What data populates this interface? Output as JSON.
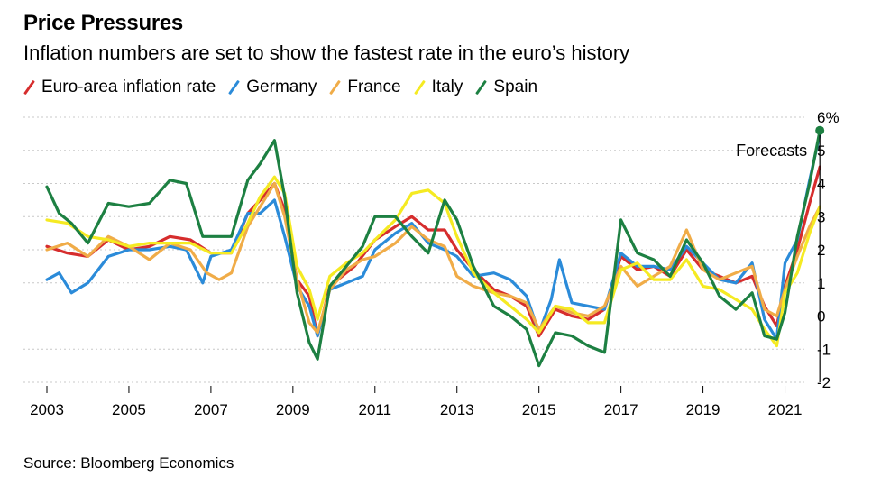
{
  "chart_data": {
    "type": "line",
    "title": "Price Pressures",
    "subtitle": "Inflation numbers are set to show the fastest rate in the euro’s history",
    "source": "Source: Bloomberg Economics",
    "annotation": "Forecasts",
    "xlim": [
      2003,
      2022
    ],
    "ylim": [
      -2,
      6
    ],
    "x_ticks": [
      2003,
      2005,
      2007,
      2009,
      2011,
      2013,
      2015,
      2017,
      2019,
      2021
    ],
    "x_tick_labels": [
      "2003",
      "2005",
      "2007",
      "2009",
      "2011",
      "2013",
      "2015",
      "2017",
      "2019",
      "2021"
    ],
    "y_ticks": [
      -2,
      -1,
      0,
      1,
      2,
      3,
      4,
      5,
      6
    ],
    "y_tick_labels": [
      "-2",
      "-1",
      "0",
      "1",
      "2",
      "3",
      "4",
      "5",
      "6%"
    ],
    "legend_position": "top-left",
    "grid": "dashed-horizontal",
    "series": [
      {
        "name": "Euro-area inflation rate",
        "color": "#d62d2d",
        "x": [
          2003.0,
          2003.5,
          2004.0,
          2004.5,
          2005.0,
          2005.5,
          2006.0,
          2006.5,
          2007.0,
          2007.5,
          2007.9,
          2008.2,
          2008.55,
          2008.8,
          2009.1,
          2009.4,
          2009.6,
          2009.9,
          2010.2,
          2010.5,
          2011.0,
          2011.5,
          2011.9,
          2012.3,
          2012.7,
          2013.0,
          2013.4,
          2013.9,
          2014.3,
          2014.7,
          2015.0,
          2015.4,
          2015.8,
          2016.2,
          2016.6,
          2017.0,
          2017.4,
          2017.8,
          2018.2,
          2018.6,
          2019.0,
          2019.4,
          2019.8,
          2020.2,
          2020.5,
          2020.8,
          2021.0,
          2021.3,
          2021.6,
          2021.85
        ],
        "values": [
          2.1,
          1.9,
          1.8,
          2.3,
          2.0,
          2.1,
          2.4,
          2.3,
          1.9,
          1.9,
          3.1,
          3.5,
          4.0,
          3.2,
          1.1,
          0.6,
          -0.6,
          0.9,
          1.2,
          1.5,
          2.3,
          2.7,
          3.0,
          2.6,
          2.6,
          2.0,
          1.4,
          0.8,
          0.6,
          0.3,
          -0.6,
          0.2,
          0.0,
          -0.1,
          0.2,
          1.8,
          1.4,
          1.5,
          1.2,
          2.0,
          1.4,
          1.2,
          1.0,
          1.2,
          0.3,
          -0.3,
          0.9,
          2.0,
          3.4,
          4.5
        ]
      },
      {
        "name": "Germany",
        "color": "#2b8bd9",
        "x": [
          2003.0,
          2003.3,
          2003.6,
          2004.0,
          2004.5,
          2005.0,
          2005.5,
          2006.0,
          2006.4,
          2006.8,
          2007.0,
          2007.5,
          2007.9,
          2008.2,
          2008.55,
          2008.8,
          2009.1,
          2009.4,
          2009.6,
          2009.9,
          2010.3,
          2010.7,
          2011.0,
          2011.5,
          2011.9,
          2012.3,
          2012.7,
          2013.0,
          2013.4,
          2013.9,
          2014.3,
          2014.7,
          2015.0,
          2015.3,
          2015.5,
          2015.8,
          2016.2,
          2016.6,
          2017.0,
          2017.4,
          2017.8,
          2018.2,
          2018.6,
          2019.0,
          2019.4,
          2019.8,
          2020.2,
          2020.5,
          2020.8,
          2021.0,
          2021.3,
          2021.6,
          2021.85
        ],
        "values": [
          1.1,
          1.3,
          0.7,
          1.0,
          1.8,
          2.0,
          2.0,
          2.1,
          2.0,
          1.0,
          1.8,
          2.0,
          3.1,
          3.1,
          3.5,
          2.4,
          0.9,
          0.3,
          -0.6,
          0.8,
          1.0,
          1.2,
          2.0,
          2.5,
          2.8,
          2.2,
          2.0,
          1.8,
          1.2,
          1.3,
          1.1,
          0.6,
          -0.5,
          0.5,
          1.7,
          0.4,
          0.3,
          0.2,
          1.9,
          1.5,
          1.5,
          1.4,
          2.1,
          1.6,
          1.1,
          1.0,
          1.6,
          -0.1,
          -0.7,
          1.6,
          2.3,
          4.1,
          5.5
        ]
      },
      {
        "name": "France",
        "color": "#f0ac48",
        "x": [
          2003.0,
          2003.5,
          2004.0,
          2004.5,
          2005.0,
          2005.5,
          2006.0,
          2006.5,
          2006.9,
          2007.2,
          2007.5,
          2007.9,
          2008.2,
          2008.55,
          2008.8,
          2009.1,
          2009.4,
          2009.6,
          2009.9,
          2010.3,
          2010.7,
          2011.0,
          2011.5,
          2011.9,
          2012.3,
          2012.7,
          2013.0,
          2013.4,
          2013.9,
          2014.3,
          2014.7,
          2015.0,
          2015.4,
          2015.8,
          2016.2,
          2016.6,
          2017.0,
          2017.4,
          2017.8,
          2018.2,
          2018.6,
          2019.0,
          2019.4,
          2019.8,
          2020.2,
          2020.5,
          2020.8,
          2021.0,
          2021.3,
          2021.6,
          2021.85
        ],
        "values": [
          2.0,
          2.2,
          1.8,
          2.4,
          2.1,
          1.7,
          2.2,
          2.0,
          1.3,
          1.1,
          1.3,
          2.7,
          3.3,
          4.0,
          3.0,
          1.1,
          -0.2,
          -0.5,
          0.8,
          1.4,
          1.7,
          1.8,
          2.2,
          2.7,
          2.3,
          2.1,
          1.2,
          0.9,
          0.7,
          0.6,
          0.4,
          -0.4,
          0.3,
          0.1,
          0.0,
          0.3,
          1.5,
          0.9,
          1.2,
          1.5,
          2.6,
          1.4,
          1.1,
          1.3,
          1.5,
          0.2,
          0.0,
          0.8,
          1.8,
          2.7,
          3.3
        ]
      },
      {
        "name": "Italy",
        "color": "#f5ea22",
        "x": [
          2003.0,
          2003.5,
          2004.0,
          2004.5,
          2005.0,
          2005.5,
          2006.0,
          2006.5,
          2007.0,
          2007.5,
          2007.9,
          2008.2,
          2008.55,
          2008.8,
          2009.1,
          2009.4,
          2009.6,
          2009.9,
          2010.3,
          2010.7,
          2011.0,
          2011.5,
          2011.9,
          2012.3,
          2012.7,
          2013.0,
          2013.4,
          2013.9,
          2014.3,
          2014.7,
          2015.0,
          2015.4,
          2015.8,
          2016.2,
          2016.6,
          2017.0,
          2017.4,
          2017.8,
          2018.2,
          2018.6,
          2019.0,
          2019.4,
          2019.8,
          2020.2,
          2020.5,
          2020.8,
          2021.0,
          2021.3,
          2021.6,
          2021.85
        ],
        "values": [
          2.9,
          2.8,
          2.4,
          2.3,
          2.1,
          2.2,
          2.2,
          2.2,
          1.9,
          1.9,
          2.8,
          3.6,
          4.2,
          3.7,
          1.5,
          0.8,
          -0.1,
          1.2,
          1.6,
          1.9,
          2.3,
          2.9,
          3.7,
          3.8,
          3.4,
          2.4,
          1.3,
          0.7,
          0.3,
          -0.1,
          -0.5,
          0.3,
          0.2,
          -0.2,
          -0.2,
          1.4,
          1.6,
          1.1,
          1.1,
          1.7,
          0.9,
          0.8,
          0.5,
          0.2,
          -0.4,
          -0.9,
          0.7,
          1.3,
          2.5,
          3.3
        ]
      },
      {
        "name": "Spain",
        "color": "#1d8042",
        "x": [
          2003.0,
          2003.3,
          2003.6,
          2004.0,
          2004.5,
          2005.0,
          2005.5,
          2006.0,
          2006.4,
          2006.8,
          2007.0,
          2007.5,
          2007.9,
          2008.2,
          2008.55,
          2008.8,
          2009.1,
          2009.4,
          2009.6,
          2009.9,
          2010.3,
          2010.7,
          2011.0,
          2011.5,
          2011.9,
          2012.3,
          2012.7,
          2013.0,
          2013.4,
          2013.9,
          2014.3,
          2014.7,
          2015.0,
          2015.4,
          2015.8,
          2016.2,
          2016.6,
          2017.0,
          2017.4,
          2017.8,
          2018.2,
          2018.6,
          2019.0,
          2019.4,
          2019.8,
          2020.2,
          2020.5,
          2020.8,
          2021.0,
          2021.3,
          2021.6,
          2021.85
        ],
        "values": [
          3.9,
          3.1,
          2.8,
          2.2,
          3.4,
          3.3,
          3.4,
          4.1,
          4.0,
          2.4,
          2.4,
          2.4,
          4.1,
          4.6,
          5.3,
          3.6,
          0.7,
          -0.8,
          -1.3,
          0.9,
          1.5,
          2.1,
          3.0,
          3.0,
          2.4,
          1.9,
          3.5,
          2.9,
          1.5,
          0.3,
          0.0,
          -0.4,
          -1.5,
          -0.5,
          -0.6,
          -0.9,
          -1.1,
          2.9,
          1.9,
          1.7,
          1.2,
          2.3,
          1.6,
          0.6,
          0.2,
          0.7,
          -0.6,
          -0.7,
          0.1,
          2.4,
          4.0,
          5.6
        ]
      }
    ]
  }
}
